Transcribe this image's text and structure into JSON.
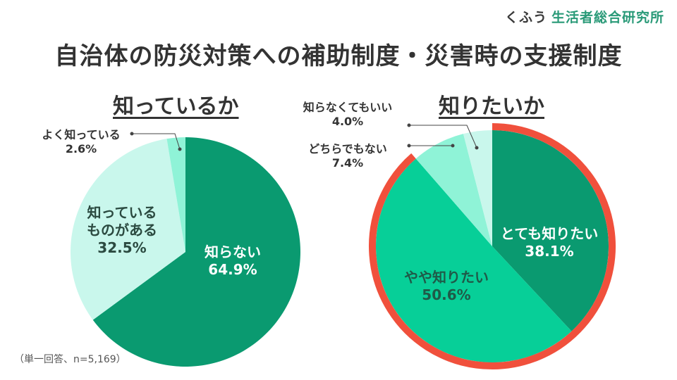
{
  "header": {
    "brand_prefix": "くふう",
    "brand_name": "生活者総合研究所",
    "title": "自治体の防災対策への補助制度・災害時の支援制度"
  },
  "note": "（単一回答、n=5,169）",
  "colors": {
    "dark_green": "#0a9a70",
    "mid_green": "#07cf98",
    "light_green": "#8ff3d7",
    "pale_green": "#c9f7ec",
    "highlight_ring": "#f0503c"
  },
  "chart_data": [
    {
      "type": "pie",
      "title": "知っているか",
      "categories": [
        "知らない",
        "知っているものがある",
        "よく知っている"
      ],
      "values": [
        64.9,
        32.5,
        2.6
      ],
      "value_labels": [
        "64.9%",
        "32.5%",
        "2.6%"
      ],
      "start": "12 o'clock, clockwise"
    },
    {
      "type": "pie",
      "title": "知りたいか",
      "categories": [
        "とても知りたい",
        "やや知りたい",
        "どちらでもない",
        "知らなくてもいい"
      ],
      "values": [
        38.1,
        50.6,
        7.4,
        4.0
      ],
      "value_labels": [
        "38.1%",
        "50.6%",
        "7.4%",
        "4.0%"
      ],
      "highlight": [
        "とても知りたい",
        "やや知りたい"
      ],
      "start": "12 o'clock, clockwise"
    }
  ],
  "labels": {
    "left": {
      "title": "知っているか",
      "s0_name": "知らない",
      "s0_val": "64.9%",
      "s1_name1": "知っている",
      "s1_name2": "ものがある",
      "s1_val": "32.5%",
      "s2_name": "よく知っている",
      "s2_val": "2.6%"
    },
    "right": {
      "title": "知りたいか",
      "s0_name": "とても知りたい",
      "s0_val": "38.1%",
      "s1_name": "やや知りたい",
      "s1_val": "50.6%",
      "s2_name": "どちらでもない",
      "s2_val": "7.4%",
      "s3_name": "知らなくてもいい",
      "s3_val": "4.0%"
    }
  }
}
